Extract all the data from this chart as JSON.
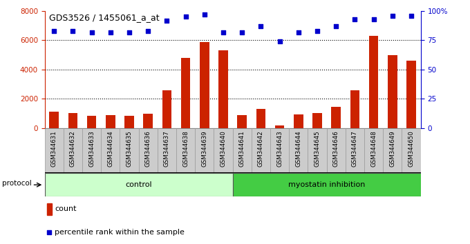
{
  "title": "GDS3526 / 1455061_a_at",
  "samples": [
    "GSM344631",
    "GSM344632",
    "GSM344633",
    "GSM344634",
    "GSM344635",
    "GSM344636",
    "GSM344637",
    "GSM344638",
    "GSM344639",
    "GSM344640",
    "GSM344641",
    "GSM344642",
    "GSM344643",
    "GSM344644",
    "GSM344645",
    "GSM344646",
    "GSM344647",
    "GSM344648",
    "GSM344649",
    "GSM344650"
  ],
  "counts": [
    1100,
    1050,
    850,
    900,
    850,
    1000,
    2600,
    4800,
    5900,
    5300,
    900,
    1300,
    200,
    950,
    1050,
    1450,
    2600,
    6300,
    5000,
    4600
  ],
  "percentiles": [
    83,
    83,
    82,
    82,
    82,
    83,
    92,
    95,
    97,
    82,
    82,
    87,
    74,
    82,
    83,
    87,
    93,
    93,
    96,
    96
  ],
  "control_count": 10,
  "groups": [
    "control",
    "myostatin inhibition"
  ],
  "bar_color": "#cc2200",
  "dot_color": "#0000cc",
  "ylim_left": [
    0,
    8000
  ],
  "ylim_right": [
    0,
    100
  ],
  "yticks_left": [
    0,
    2000,
    4000,
    6000,
    8000
  ],
  "yticks_right": [
    0,
    25,
    50,
    75,
    100
  ],
  "ytick_labels_right": [
    "0",
    "25",
    "50",
    "75",
    "100%"
  ],
  "control_fill": "#ccffcc",
  "myostatin_fill": "#44cc44",
  "xlabel_bg": "#cccccc",
  "legend_count_label": "count",
  "legend_pct_label": "percentile rank within the sample",
  "protocol_label": "protocol",
  "grid_lines": [
    2000,
    4000,
    6000
  ],
  "bar_width": 0.5
}
